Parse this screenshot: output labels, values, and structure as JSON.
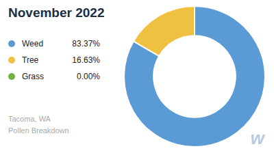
{
  "chart_data": {
    "type": "doughnut",
    "title": "November 2022",
    "subtitle": "Tacoma, WA\nPollen Breakdown",
    "categories": [
      "Weed",
      "Tree",
      "Grass"
    ],
    "values": [
      83.37,
      16.63,
      0.001
    ],
    "value_labels": [
      "83.37%",
      "16.63%",
      "0.00%"
    ],
    "colors": [
      "#5b9bd5",
      "#f0c040",
      "#70b244"
    ],
    "legend": "left",
    "annotations": [
      "w"
    ]
  }
}
